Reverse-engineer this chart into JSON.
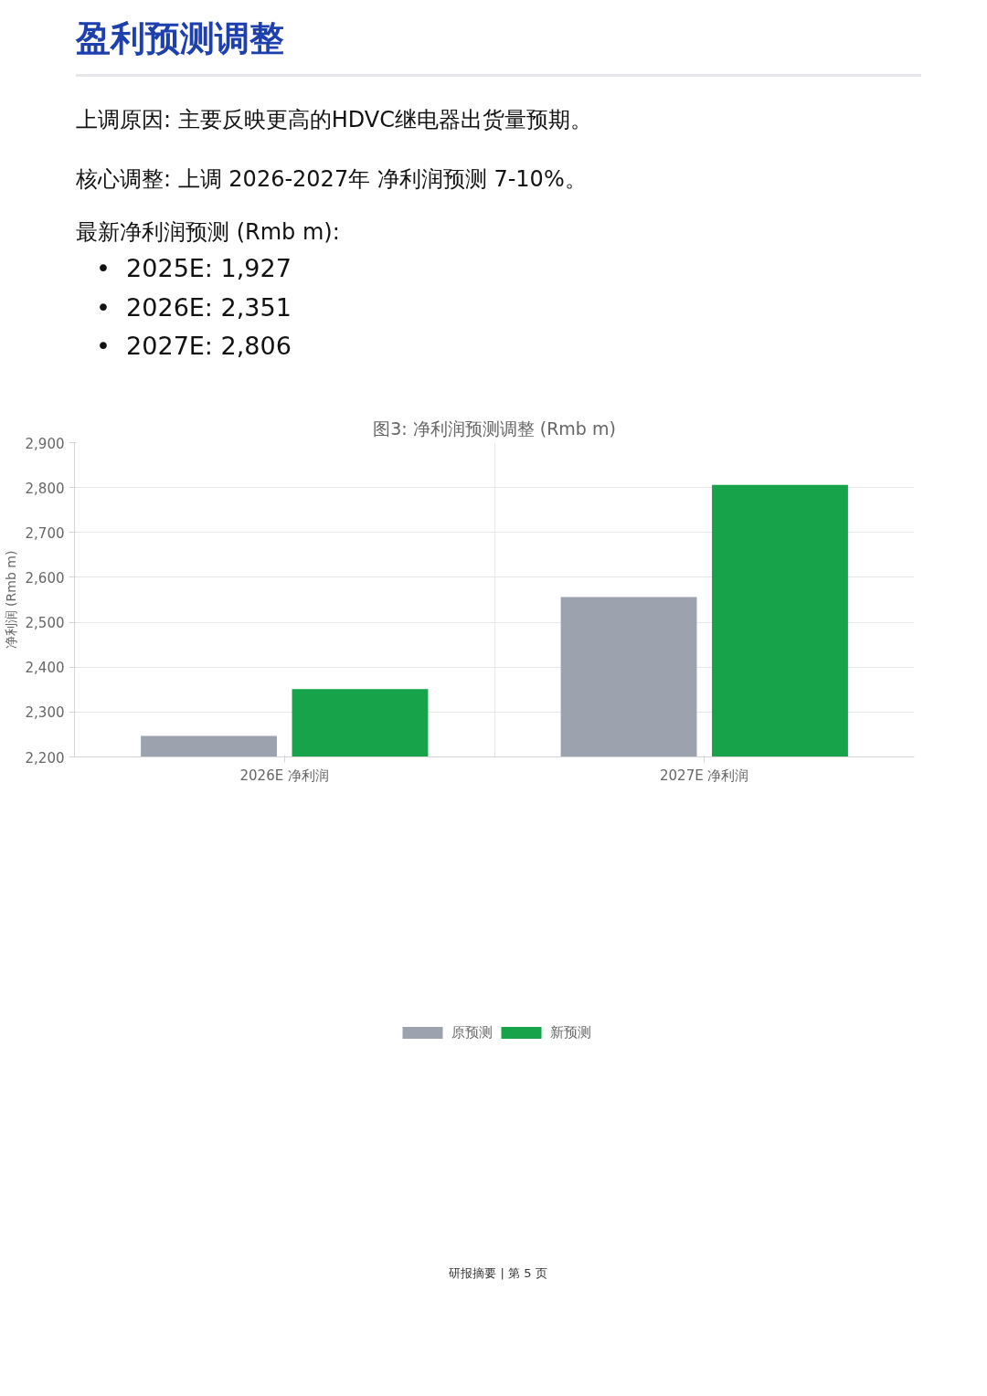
{
  "chart_data": {
    "type": "bar",
    "title": "盈利预测调整",
    "subtitle": "图3: 净利润预测调整 (Rmb m)",
    "ylabel": "净利润 (Rmb m)",
    "categories": [
      "2026E 净利润",
      "2027E 净利润"
    ],
    "series": [
      {
        "name": "原预测",
        "color": "#9ca3af",
        "values": [
          2247,
          2556
        ]
      },
      {
        "name": "新预测",
        "color": "#16a34a",
        "values": [
          2351,
          2806
        ]
      }
    ],
    "ylim": [
      2200,
      2900
    ],
    "yticks": [
      {
        "value": 2200,
        "label": "2,200"
      },
      {
        "value": 2300,
        "label": "2,300"
      },
      {
        "value": 2400,
        "label": "2,400"
      },
      {
        "value": 2500,
        "label": "2,500"
      },
      {
        "value": 2600,
        "label": "2,600"
      },
      {
        "value": 2700,
        "label": "2,700"
      },
      {
        "value": 2800,
        "label": "2,800"
      },
      {
        "value": 2900,
        "label": "2,900"
      }
    ],
    "grid": true,
    "legend": "bottom",
    "annotations": [
      "上调原因: 主要反映更高的HDVC继电器出货量预期。",
      "核心调整: 上调 2026-2027年 净利润预测 7-10%。",
      "最新净利润预测 (Rmb m):",
      "•  2025E: 1,927",
      "•  2026E: 2,351",
      "•  2027E: 2,806",
      "研报摘要 | 第 5 页"
    ]
  }
}
